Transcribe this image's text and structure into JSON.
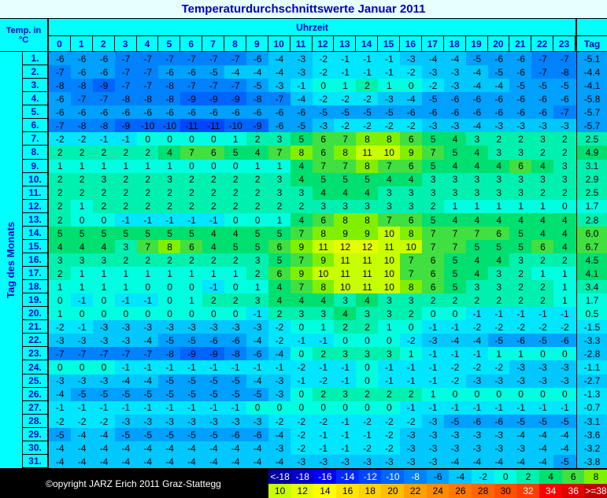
{
  "title": "Temperaturdurchschnittswerte Januar 2011",
  "header": {
    "corner": "Temp. in °C",
    "hours_label": "Uhrzeit",
    "hours": [
      0,
      1,
      2,
      3,
      4,
      5,
      6,
      7,
      8,
      9,
      10,
      11,
      12,
      13,
      14,
      15,
      16,
      17,
      18,
      19,
      20,
      21,
      22,
      23
    ],
    "avg_label": "Tag"
  },
  "row_axis_label": "Tag des Monats",
  "rows": [
    {
      "day": "1.",
      "values": [
        -6,
        -6,
        -6,
        -7,
        -7,
        -7,
        -7,
        -7,
        -7,
        -6,
        -4,
        -3,
        -2,
        -1,
        -1,
        -1,
        -3,
        -4,
        -4,
        -5,
        -6,
        -6,
        -7,
        -7
      ],
      "avg": "-5.1"
    },
    {
      "day": "2.",
      "values": [
        -7,
        -6,
        -6,
        -7,
        -7,
        -6,
        -6,
        -5,
        -4,
        -4,
        -4,
        -3,
        -2,
        -1,
        -1,
        -1,
        -2,
        -3,
        -3,
        -4,
        -5,
        -6,
        -7,
        -8
      ],
      "avg": "-4.4"
    },
    {
      "day": "3.",
      "values": [
        -8,
        -8,
        -9,
        -7,
        -7,
        -8,
        -7,
        -7,
        -7,
        -5,
        -3,
        -1,
        0,
        1,
        2,
        1,
        0,
        -2,
        -3,
        -4,
        -4,
        -5,
        -5,
        -5
      ],
      "avg": "-4.1"
    },
    {
      "day": "4.",
      "values": [
        -6,
        -7,
        -7,
        -8,
        -8,
        -8,
        -9,
        -9,
        -9,
        -8,
        -7,
        -4,
        -2,
        -2,
        -2,
        -3,
        -4,
        -5,
        -6,
        -6,
        -6,
        -6,
        -6,
        -6
      ],
      "avg": "-5.8"
    },
    {
      "day": "5.",
      "values": [
        -6,
        -6,
        -6,
        -6,
        -6,
        -6,
        -6,
        -6,
        -6,
        -6,
        -6,
        -6,
        -5,
        -5,
        -5,
        -5,
        -6,
        -6,
        -6,
        -6,
        -6,
        -6,
        -6,
        -7
      ],
      "avg": "-5.7"
    },
    {
      "day": "6.",
      "values": [
        -7,
        -8,
        -8,
        -9,
        -10,
        -10,
        -11,
        -11,
        -10,
        -9,
        -6,
        -5,
        -3,
        -2,
        -2,
        -2,
        -2,
        -3,
        -3,
        -4,
        -3,
        -3,
        -3,
        -3
      ],
      "avg": "-5.7"
    },
    {
      "day": "7.",
      "values": [
        -2,
        -2,
        -1,
        -1,
        0,
        0,
        0,
        0,
        1,
        2,
        3,
        5,
        6,
        7,
        8,
        8,
        6,
        5,
        4,
        3,
        2,
        2,
        3,
        2
      ],
      "avg": "2.5"
    },
    {
      "day": "8.",
      "values": [
        2,
        2,
        2,
        2,
        2,
        4,
        7,
        6,
        5,
        4,
        7,
        8,
        6,
        8,
        11,
        10,
        9,
        7,
        5,
        4,
        3,
        3,
        2,
        2
      ],
      "avg": "4.9"
    },
    {
      "day": "9.",
      "values": [
        1,
        1,
        1,
        1,
        1,
        1,
        0,
        0,
        0,
        1,
        1,
        4,
        7,
        7,
        8,
        7,
        6,
        5,
        4,
        4,
        4,
        6,
        4,
        3
      ],
      "avg": "3.1"
    },
    {
      "day": "10.",
      "values": [
        2,
        2,
        3,
        2,
        2,
        3,
        2,
        2,
        2,
        2,
        3,
        4,
        5,
        5,
        5,
        4,
        4,
        3,
        3,
        3,
        3,
        3,
        3,
        3
      ],
      "avg": "2.9"
    },
    {
      "day": "11.",
      "values": [
        2,
        2,
        2,
        2,
        2,
        2,
        2,
        2,
        2,
        2,
        3,
        3,
        4,
        4,
        4,
        3,
        3,
        3,
        3,
        3,
        3,
        3,
        2,
        2
      ],
      "avg": "2.5"
    },
    {
      "day": "12.",
      "values": [
        2,
        1,
        2,
        2,
        2,
        2,
        2,
        2,
        2,
        2,
        2,
        2,
        3,
        3,
        3,
        3,
        3,
        2,
        1,
        1,
        1,
        1,
        1,
        0
      ],
      "avg": "1.7"
    },
    {
      "day": "13.",
      "values": [
        2,
        0,
        0,
        -1,
        -1,
        -1,
        -1,
        -1,
        0,
        0,
        1,
        4,
        6,
        8,
        8,
        7,
        6,
        5,
        4,
        4,
        4,
        4,
        4,
        4
      ],
      "avg": "2.8"
    },
    {
      "day": "14.",
      "values": [
        5,
        5,
        5,
        5,
        5,
        5,
        5,
        4,
        4,
        5,
        5,
        7,
        8,
        9,
        9,
        10,
        8,
        7,
        7,
        7,
        6,
        5,
        4,
        4
      ],
      "avg": "6.0"
    },
    {
      "day": "15.",
      "values": [
        4,
        4,
        4,
        3,
        7,
        8,
        6,
        4,
        5,
        5,
        6,
        9,
        11,
        12,
        12,
        11,
        10,
        7,
        7,
        5,
        5,
        5,
        6,
        4
      ],
      "avg": "6.7"
    },
    {
      "day": "16.",
      "values": [
        3,
        3,
        3,
        2,
        2,
        2,
        2,
        2,
        2,
        3,
        5,
        7,
        9,
        11,
        11,
        10,
        7,
        6,
        5,
        4,
        4,
        3,
        2,
        2
      ],
      "avg": "4.5"
    },
    {
      "day": "17.",
      "values": [
        2,
        1,
        1,
        1,
        1,
        1,
        1,
        1,
        1,
        2,
        6,
        9,
        10,
        11,
        11,
        10,
        7,
        6,
        5,
        4,
        3,
        2,
        1,
        1
      ],
      "avg": "4.1"
    },
    {
      "day": "18.",
      "values": [
        1,
        1,
        1,
        1,
        0,
        0,
        0,
        -1,
        0,
        1,
        4,
        7,
        8,
        10,
        11,
        10,
        8,
        6,
        5,
        3,
        3,
        2,
        2,
        1
      ],
      "avg": "3.4"
    },
    {
      "day": "19.",
      "values": [
        0,
        -1,
        0,
        -1,
        -1,
        0,
        1,
        2,
        2,
        3,
        4,
        4,
        4,
        3,
        4,
        3,
        3,
        2,
        2,
        2,
        2,
        2,
        2,
        1
      ],
      "avg": "1.7"
    },
    {
      "day": "20.",
      "values": [
        1,
        0,
        0,
        0,
        0,
        0,
        0,
        0,
        0,
        -1,
        2,
        3,
        3,
        4,
        3,
        3,
        2,
        0,
        0,
        -1,
        -1,
        -1,
        -1,
        -1
      ],
      "avg": "0.5"
    },
    {
      "day": "21.",
      "values": [
        -2,
        -1,
        -3,
        -3,
        -3,
        -3,
        -3,
        -3,
        -3,
        -3,
        -2,
        0,
        1,
        2,
        2,
        1,
        0,
        -1,
        -1,
        -2,
        -2,
        -2,
        -2,
        -2
      ],
      "avg": "-1.5"
    },
    {
      "day": "22.",
      "values": [
        -3,
        -3,
        -3,
        -3,
        -4,
        -5,
        -5,
        -6,
        -6,
        -4,
        -2,
        -1,
        -1,
        0,
        0,
        0,
        -2,
        -3,
        -4,
        -4,
        -5,
        -6,
        -5,
        -6
      ],
      "avg": "-3.3"
    },
    {
      "day": "23.",
      "values": [
        -7,
        -7,
        -7,
        -7,
        -7,
        -8,
        -9,
        -9,
        -8,
        -6,
        -4,
        0,
        2,
        3,
        3,
        3,
        1,
        -1,
        -1,
        -1,
        1,
        1,
        0,
        0
      ],
      "avg": "-2.8"
    },
    {
      "day": "24.",
      "values": [
        0,
        0,
        0,
        -1,
        -1,
        -1,
        -1,
        -1,
        -1,
        -1,
        -1,
        -2,
        -1,
        -1,
        0,
        -1,
        -1,
        -1,
        -2,
        -2,
        -2,
        -3,
        -3,
        -3
      ],
      "avg": "-1.1"
    },
    {
      "day": "25.",
      "values": [
        -3,
        -3,
        -3,
        -4,
        -4,
        -5,
        -5,
        -5,
        -5,
        -4,
        -3,
        -1,
        -2,
        -1,
        0,
        -1,
        -1,
        -1,
        -2,
        -3,
        -3,
        -3,
        -3,
        -3
      ],
      "avg": "-2.7"
    },
    {
      "day": "26.",
      "values": [
        -4,
        -5,
        -5,
        -5,
        -5,
        -5,
        -5,
        -5,
        -5,
        -5,
        -3,
        0,
        2,
        3,
        2,
        2,
        2,
        1,
        0,
        0,
        0,
        0,
        0,
        0
      ],
      "avg": "-1.3"
    },
    {
      "day": "27.",
      "values": [
        -1,
        -1,
        -1,
        -1,
        -1,
        -1,
        -1,
        -1,
        -1,
        0,
        0,
        0,
        0,
        0,
        0,
        0,
        -1,
        -1,
        -1,
        -1,
        -1,
        -1,
        -1,
        -1
      ],
      "avg": "-0.7"
    },
    {
      "day": "28.",
      "values": [
        -2,
        -2,
        -2,
        -3,
        -3,
        -3,
        -3,
        -3,
        -3,
        -3,
        -2,
        -2,
        -2,
        -1,
        -2,
        -2,
        -2,
        -3,
        -5,
        -6,
        -6,
        -5,
        -5,
        -5
      ],
      "avg": "-3.1"
    },
    {
      "day": "29.",
      "values": [
        -5,
        -4,
        -4,
        -5,
        -5,
        -5,
        -5,
        -5,
        -6,
        -6,
        -4,
        -2,
        -1,
        -1,
        -1,
        -2,
        -3,
        -3,
        -3,
        -3,
        -3,
        -4,
        -4,
        -4
      ],
      "avg": "-3.6"
    },
    {
      "day": "30.",
      "values": [
        -4,
        -4,
        -4,
        -4,
        -4,
        -4,
        -4,
        -4,
        -4,
        -4,
        -3,
        -2,
        -1,
        -1,
        -2,
        -2,
        -3,
        -3,
        -3,
        -3,
        -3,
        -3,
        -4,
        -4
      ],
      "avg": "-3.2"
    },
    {
      "day": "31.",
      "values": [
        -4,
        -4,
        -4,
        -4,
        -4,
        -4,
        -4,
        -4,
        -4,
        -4,
        -4,
        -3,
        -3,
        -3,
        -3,
        -3,
        -3,
        -3,
        -4,
        -4,
        -4,
        -4,
        -4,
        -5
      ],
      "avg": "-3.8"
    }
  ],
  "legend": [
    {
      "label": "<-18",
      "color": "#0000a0"
    },
    {
      "label": "-18",
      "color": "#0000c8"
    },
    {
      "label": "-16",
      "color": "#0000ff"
    },
    {
      "label": "-14",
      "color": "#0028ff"
    },
    {
      "label": "-12",
      "color": "#0046ff"
    },
    {
      "label": "-10",
      "color": "#0064ff"
    },
    {
      "label": "-8",
      "color": "#0082ff"
    },
    {
      "label": "-6",
      "color": "#00a0ff"
    },
    {
      "label": "-4",
      "color": "#00c8ff"
    },
    {
      "label": "-2",
      "color": "#00e6ff"
    },
    {
      "label": "0",
      "color": "#00ffe0"
    },
    {
      "label": "2",
      "color": "#00f0b0"
    },
    {
      "label": "4",
      "color": "#00e070"
    },
    {
      "label": "6",
      "color": "#40e040"
    },
    {
      "label": "8",
      "color": "#80f000"
    },
    {
      "label": "10",
      "color": "#c8ff00"
    },
    {
      "label": "12",
      "color": "#e6ff00"
    },
    {
      "label": "14",
      "color": "#ffff00"
    },
    {
      "label": "16",
      "color": "#ffe600"
    },
    {
      "label": "18",
      "color": "#ffd200"
    },
    {
      "label": "20",
      "color": "#ffbe00"
    },
    {
      "label": "22",
      "color": "#ffa000"
    },
    {
      "label": "24",
      "color": "#ff8c00"
    },
    {
      "label": "26",
      "color": "#ff7800"
    },
    {
      "label": "28",
      "color": "#ff6400"
    },
    {
      "label": "30",
      "color": "#ff5000"
    },
    {
      "label": "32",
      "color": "#ff3c00"
    },
    {
      "label": "34",
      "color": "#ff0000"
    },
    {
      "label": "36",
      "color": "#e00000"
    },
    {
      "label": ">=38",
      "color": "#c00000"
    }
  ],
  "copyright": "©opyright JARZ Erich 2011 Graz-Stattegg"
}
